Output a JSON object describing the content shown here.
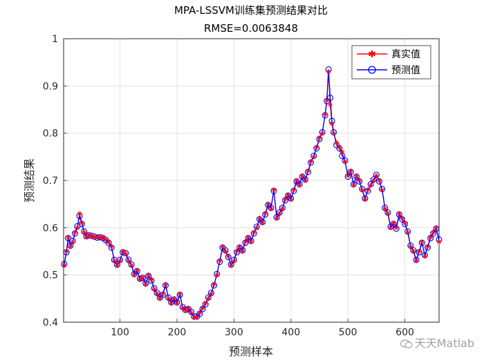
{
  "chart_data": {
    "type": "line",
    "title": "MPA-LSSVM训练集预测结果对比",
    "subtitle": "RMSE=0.0063848",
    "xlabel": "预测样本",
    "ylabel": "预测结果",
    "xlim": [
      1,
      660
    ],
    "ylim": [
      0.4,
      1.0
    ],
    "xticks": [
      100,
      200,
      300,
      400,
      500,
      600
    ],
    "yticks": [
      0.4,
      0.5,
      0.6,
      0.7,
      0.8,
      0.9,
      1.0
    ],
    "xticklabels": [
      "100",
      "200",
      "300",
      "400",
      "500",
      "600"
    ],
    "yticklabels": [
      "0.4",
      "0.5",
      "0.6",
      "0.7",
      "0.8",
      "0.9",
      "1"
    ],
    "grid": true,
    "legend_position": "top-right",
    "x": [
      2,
      6,
      9,
      13,
      17,
      21,
      25,
      29,
      33,
      37,
      41,
      45,
      50,
      55,
      60,
      65,
      70,
      75,
      80,
      85,
      90,
      95,
      100,
      105,
      110,
      115,
      120,
      125,
      130,
      135,
      140,
      145,
      150,
      155,
      160,
      165,
      170,
      175,
      180,
      185,
      190,
      195,
      200,
      205,
      210,
      215,
      220,
      225,
      230,
      235,
      240,
      245,
      250,
      255,
      260,
      265,
      270,
      275,
      280,
      285,
      290,
      295,
      300,
      305,
      310,
      315,
      320,
      325,
      330,
      335,
      340,
      345,
      350,
      355,
      360,
      365,
      370,
      375,
      380,
      385,
      390,
      395,
      400,
      405,
      410,
      415,
      420,
      425,
      430,
      435,
      440,
      445,
      450,
      455,
      460,
      463,
      466,
      469,
      472,
      475,
      480,
      485,
      490,
      495,
      500,
      505,
      510,
      515,
      520,
      525,
      530,
      535,
      540,
      545,
      550,
      555,
      560,
      565,
      570,
      575,
      580,
      585,
      590,
      595,
      600,
      605,
      610,
      615,
      620,
      625,
      630,
      635,
      640,
      645,
      650,
      655,
      660
    ],
    "series": [
      {
        "name": "真实值",
        "color": "#ff0000",
        "marker": "star",
        "values": [
          0.52,
          0.55,
          0.58,
          0.56,
          0.57,
          0.59,
          0.6,
          0.63,
          0.61,
          0.59,
          0.58,
          0.585,
          0.582,
          0.58,
          0.58,
          0.58,
          0.58,
          0.575,
          0.57,
          0.56,
          0.53,
          0.52,
          0.53,
          0.55,
          0.545,
          0.53,
          0.52,
          0.5,
          0.51,
          0.49,
          0.495,
          0.48,
          0.5,
          0.49,
          0.47,
          0.46,
          0.45,
          0.46,
          0.48,
          0.45,
          0.44,
          0.45,
          0.44,
          0.46,
          0.43,
          0.425,
          0.43,
          0.42,
          0.41,
          0.41,
          0.42,
          0.43,
          0.44,
          0.45,
          0.46,
          0.48,
          0.5,
          0.53,
          0.56,
          0.55,
          0.54,
          0.52,
          0.53,
          0.55,
          0.56,
          0.55,
          0.57,
          0.58,
          0.57,
          0.59,
          0.6,
          0.62,
          0.61,
          0.63,
          0.65,
          0.64,
          0.68,
          0.62,
          0.63,
          0.64,
          0.66,
          0.67,
          0.66,
          0.68,
          0.7,
          0.69,
          0.71,
          0.7,
          0.72,
          0.74,
          0.75,
          0.77,
          0.79,
          0.8,
          0.84,
          0.87,
          0.93,
          0.86,
          0.82,
          0.8,
          0.78,
          0.77,
          0.76,
          0.74,
          0.71,
          0.72,
          0.69,
          0.71,
          0.7,
          0.68,
          0.66,
          0.68,
          0.69,
          0.7,
          0.71,
          0.7,
          0.68,
          0.64,
          0.63,
          0.6,
          0.61,
          0.6,
          0.63,
          0.62,
          0.61,
          0.59,
          0.56,
          0.55,
          0.53,
          0.55,
          0.57,
          0.54,
          0.56,
          0.58,
          0.59,
          0.6,
          0.57
        ]
      },
      {
        "name": "预测值",
        "color": "#0000ff",
        "marker": "circle",
        "values": [
          0.523,
          0.548,
          0.578,
          0.562,
          0.572,
          0.588,
          0.603,
          0.625,
          0.608,
          0.592,
          0.582,
          0.584,
          0.583,
          0.581,
          0.579,
          0.58,
          0.578,
          0.574,
          0.568,
          0.558,
          0.532,
          0.522,
          0.532,
          0.548,
          0.546,
          0.532,
          0.522,
          0.502,
          0.508,
          0.492,
          0.494,
          0.482,
          0.498,
          0.488,
          0.472,
          0.462,
          0.452,
          0.458,
          0.478,
          0.452,
          0.442,
          0.448,
          0.442,
          0.458,
          0.432,
          0.426,
          0.428,
          0.422,
          0.412,
          0.412,
          0.418,
          0.428,
          0.438,
          0.452,
          0.462,
          0.478,
          0.502,
          0.528,
          0.558,
          0.552,
          0.538,
          0.522,
          0.532,
          0.548,
          0.558,
          0.552,
          0.568,
          0.578,
          0.572,
          0.588,
          0.602,
          0.618,
          0.612,
          0.628,
          0.648,
          0.642,
          0.678,
          0.622,
          0.632,
          0.642,
          0.658,
          0.668,
          0.662,
          0.678,
          0.698,
          0.692,
          0.708,
          0.702,
          0.718,
          0.738,
          0.752,
          0.768,
          0.788,
          0.802,
          0.838,
          0.868,
          0.935,
          0.875,
          0.826,
          0.802,
          0.775,
          0.768,
          0.752,
          0.742,
          0.708,
          0.718,
          0.692,
          0.708,
          0.698,
          0.682,
          0.662,
          0.678,
          0.692,
          0.702,
          0.712,
          0.698,
          0.682,
          0.642,
          0.632,
          0.602,
          0.608,
          0.598,
          0.628,
          0.618,
          0.608,
          0.592,
          0.562,
          0.552,
          0.532,
          0.548,
          0.568,
          0.542,
          0.558,
          0.578,
          0.588,
          0.598,
          0.575
        ]
      }
    ]
  },
  "watermark": "天天Matlab"
}
